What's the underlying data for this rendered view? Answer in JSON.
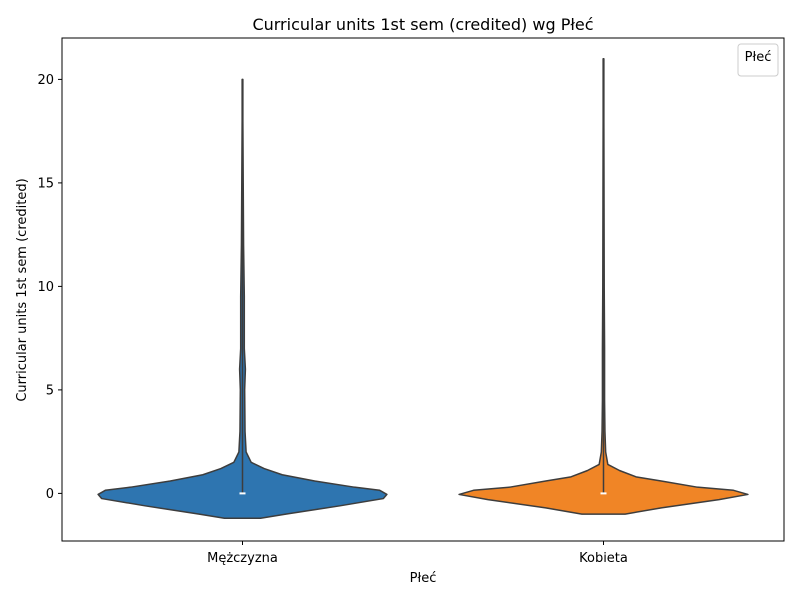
{
  "chart_data": {
    "type": "violin",
    "title": "Curricular units 1st sem (credited) wg Płeć",
    "xlabel": "Płeć",
    "ylabel": "Curricular units 1st sem (credited)",
    "categories": [
      "Mężczyzna",
      "Kobieta"
    ],
    "ylim": [
      -2.3,
      22.0
    ],
    "yticks": [
      0,
      5,
      10,
      15,
      20
    ],
    "legend": {
      "title": "Płeć",
      "position": "top-right",
      "entries": []
    },
    "colors": {
      "Mężczyzna": "#2e75b0",
      "Kobieta": "#f08526",
      "outline": "#3d3d3d"
    },
    "violins": [
      {
        "category": "Mężczyzna",
        "median": 0,
        "range": [
          0,
          20
        ],
        "density_profile": [
          {
            "y": -1.2,
            "half_width": 0.05
          },
          {
            "y": -1.0,
            "half_width": 0.12
          },
          {
            "y": -0.6,
            "half_width": 0.27
          },
          {
            "y": -0.25,
            "half_width": 0.39
          },
          {
            "y": -0.05,
            "half_width": 0.4
          },
          {
            "y": 0.15,
            "half_width": 0.38
          },
          {
            "y": 0.3,
            "half_width": 0.31
          },
          {
            "y": 0.6,
            "half_width": 0.2
          },
          {
            "y": 0.9,
            "half_width": 0.11
          },
          {
            "y": 1.2,
            "half_width": 0.06
          },
          {
            "y": 1.5,
            "half_width": 0.024
          },
          {
            "y": 2.0,
            "half_width": 0.01
          },
          {
            "y": 3.0,
            "half_width": 0.007
          },
          {
            "y": 5.0,
            "half_width": 0.006
          },
          {
            "y": 6.0,
            "half_width": 0.008
          },
          {
            "y": 7.0,
            "half_width": 0.005
          },
          {
            "y": 9.5,
            "half_width": 0.005
          },
          {
            "y": 12.0,
            "half_width": 0.003
          },
          {
            "y": 15.0,
            "half_width": 0.002
          },
          {
            "y": 18.0,
            "half_width": 0.001
          },
          {
            "y": 20.0,
            "half_width": 0.001
          }
        ]
      },
      {
        "category": "Kobieta",
        "median": 0,
        "range": [
          0,
          21
        ],
        "density_profile": [
          {
            "y": -1.0,
            "half_width": 0.06
          },
          {
            "y": -0.7,
            "half_width": 0.16
          },
          {
            "y": -0.3,
            "half_width": 0.32
          },
          {
            "y": -0.05,
            "half_width": 0.4
          },
          {
            "y": 0.15,
            "half_width": 0.36
          },
          {
            "y": 0.3,
            "half_width": 0.26
          },
          {
            "y": 0.6,
            "half_width": 0.16
          },
          {
            "y": 0.8,
            "half_width": 0.09
          },
          {
            "y": 1.1,
            "half_width": 0.045
          },
          {
            "y": 1.4,
            "half_width": 0.012
          },
          {
            "y": 2.0,
            "half_width": 0.006
          },
          {
            "y": 3.0,
            "half_width": 0.004
          },
          {
            "y": 4.5,
            "half_width": 0.003
          },
          {
            "y": 7.0,
            "half_width": 0.003
          },
          {
            "y": 10.0,
            "half_width": 0.002
          },
          {
            "y": 14.0,
            "half_width": 0.0015
          },
          {
            "y": 18.0,
            "half_width": 0.001
          },
          {
            "y": 21.0,
            "half_width": 0.001
          }
        ]
      }
    ]
  }
}
